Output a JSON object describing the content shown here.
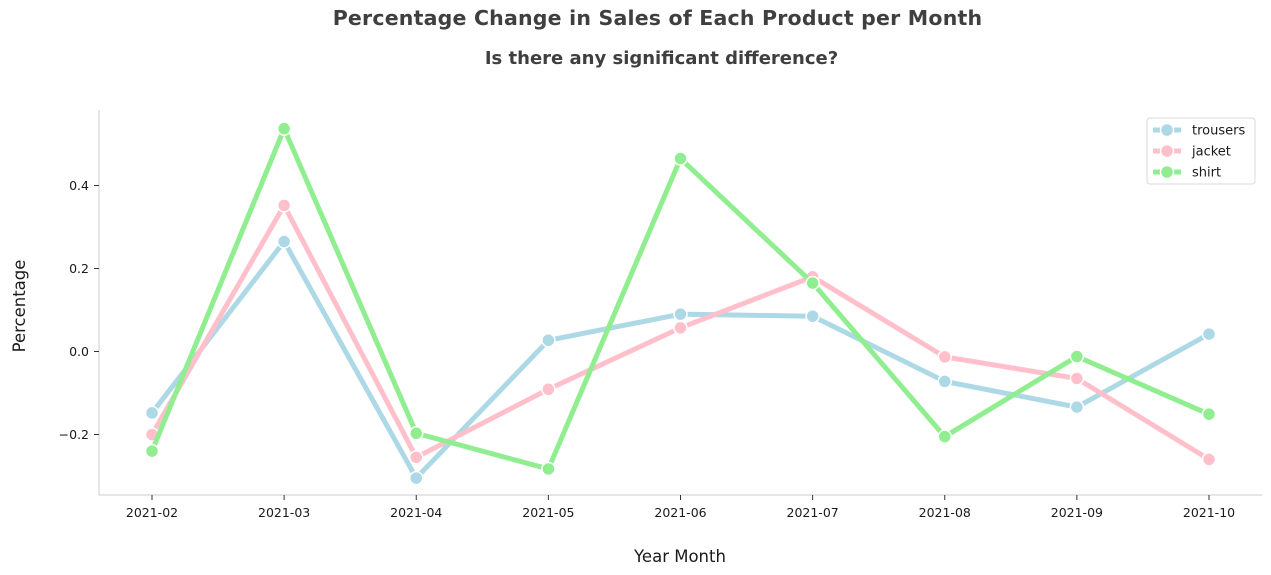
{
  "chart_data": {
    "type": "line",
    "title": "Percentage Change in Sales of Each Product per Month",
    "subtitle": "Is there any significant difference?",
    "xlabel": "Year Month",
    "ylabel": "Percentage",
    "categories": [
      "2021-02",
      "2021-03",
      "2021-04",
      "2021-05",
      "2021-06",
      "2021-07",
      "2021-08",
      "2021-09",
      "2021-10"
    ],
    "yticks": [
      -0.2,
      0.0,
      0.2,
      0.4
    ],
    "ytick_labels": [
      "−0.2",
      "0.0",
      "0.2",
      "0.4"
    ],
    "ylim": [
      -0.35,
      0.58
    ],
    "grid": false,
    "legend_position": "top-right",
    "series": [
      {
        "name": "trousers",
        "color": "#add8e6",
        "values": [
          -0.148,
          0.265,
          -0.305,
          0.027,
          0.09,
          0.085,
          -0.072,
          -0.134,
          0.042
        ]
      },
      {
        "name": "jacket",
        "color": "#ffc0cb",
        "values": [
          -0.2,
          0.352,
          -0.255,
          -0.091,
          0.057,
          0.18,
          -0.013,
          -0.065,
          -0.26
        ]
      },
      {
        "name": "shirt",
        "color": "#90ee90",
        "values": [
          -0.24,
          0.537,
          -0.197,
          -0.283,
          0.465,
          0.165,
          -0.205,
          -0.012,
          -0.151
        ]
      }
    ]
  }
}
